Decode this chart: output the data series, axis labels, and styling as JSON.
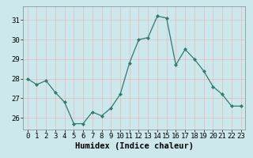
{
  "x": [
    0,
    1,
    2,
    3,
    4,
    5,
    6,
    7,
    8,
    9,
    10,
    11,
    12,
    13,
    14,
    15,
    16,
    17,
    18,
    19,
    20,
    21,
    22,
    23
  ],
  "y": [
    28.0,
    27.7,
    27.9,
    27.3,
    26.8,
    25.7,
    25.7,
    26.3,
    26.1,
    26.5,
    27.2,
    28.8,
    30.0,
    30.1,
    31.2,
    31.1,
    28.7,
    29.5,
    29.0,
    28.4,
    27.6,
    27.2,
    26.6,
    26.6
  ],
  "line_color": "#2e7d6e",
  "marker": "D",
  "marker_size": 2,
  "bg_color": "#cce8ec",
  "grid_color": "#e8b8b8",
  "xlabel": "Humidex (Indice chaleur)",
  "xlim": [
    -0.5,
    23.5
  ],
  "ylim": [
    25.4,
    31.7
  ],
  "yticks": [
    26,
    27,
    28,
    29,
    30,
    31
  ],
  "xticks": [
    0,
    1,
    2,
    3,
    4,
    5,
    6,
    7,
    8,
    9,
    10,
    11,
    12,
    13,
    14,
    15,
    16,
    17,
    18,
    19,
    20,
    21,
    22,
    23
  ],
  "xlabel_fontsize": 7.5,
  "tick_fontsize": 6.5
}
